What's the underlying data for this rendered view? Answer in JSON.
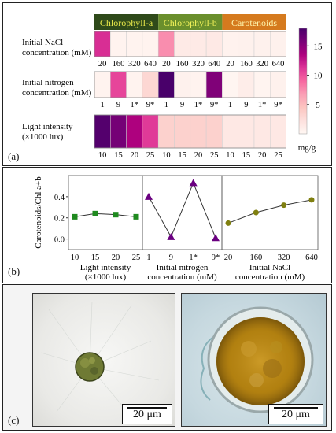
{
  "panel_labels": {
    "a": "(a)",
    "b": "(b)",
    "c": "(c)"
  },
  "heatmap": {
    "group_headers": [
      {
        "label": "Chlorophyll-a",
        "bg": "#2f4a1a",
        "fg": "#e8e84a"
      },
      {
        "label": "Chlorophyll-b",
        "bg": "#6a8f2c",
        "fg": "#f2f25a"
      },
      {
        "label": "Carotenoids",
        "bg": "#d57a1e",
        "fg": "#fff7b0"
      }
    ],
    "rows": [
      {
        "label": "Initial NaCl concentration (mM)",
        "label_line1": "Initial NaCl",
        "label_line2": "concentration (mM)",
        "ticks": [
          "20",
          "160",
          "320",
          "640",
          "20",
          "160",
          "320",
          "640",
          "20",
          "160",
          "320",
          "640"
        ],
        "values": [
          11.5,
          0.4,
          0.4,
          0.4,
          7.5,
          1.3,
          1.3,
          1.4,
          0.5,
          0.6,
          0.6,
          0.6
        ]
      },
      {
        "label": "Initial nitrogen concentration (mM)",
        "label_line1": "Initial nitrogen",
        "label_line2": "concentration (mM)",
        "ticks": [
          "1",
          "9",
          "1*",
          "9*",
          "1",
          "9",
          "1*",
          "9*",
          "1",
          "9",
          "1*",
          "9*"
        ],
        "values": [
          0.4,
          10.5,
          0.4,
          3.0,
          18.0,
          0.6,
          0.4,
          15.5,
          0.2,
          1.0,
          0.3,
          0.6
        ]
      },
      {
        "label": "Light intensity (×1000 lux)",
        "label_line1": "Light intensity",
        "label_line2": "(×1000  lux)",
        "ticks": [
          "10",
          "15",
          "20",
          "25",
          "10",
          "15",
          "20",
          "25",
          "10",
          "15",
          "20",
          "25"
        ],
        "values": [
          17.5,
          16.0,
          13.5,
          11.0,
          3.5,
          3.5,
          3.5,
          3.5,
          1.5,
          1.5,
          1.5,
          1.5
        ]
      }
    ],
    "colorbar": {
      "ticks": [
        "15",
        "10",
        "5"
      ],
      "tick_values": [
        15,
        10,
        5
      ],
      "min": 0,
      "max": 18,
      "unit": "mg/g",
      "stops": [
        "#fff7f3",
        "#fde0dd",
        "#fcc5c0",
        "#fa9fb5",
        "#f768a1",
        "#dd3497",
        "#ae017e",
        "#7a0177",
        "#49006a"
      ]
    }
  },
  "chart_data": [
    {
      "type": "line",
      "title": "",
      "xlabel": "Light intensity (×1000 lux)",
      "ylabel": "Carotenoids/Chl a+b",
      "categories": [
        "10",
        "15",
        "20",
        "25"
      ],
      "values": [
        0.21,
        0.24,
        0.23,
        0.21
      ],
      "ylim": [
        -0.1,
        0.6
      ],
      "yticks": [
        "0.0",
        "0.2",
        "0.4"
      ],
      "color": "#1f8a1f",
      "marker": "square"
    },
    {
      "type": "line",
      "title": "",
      "xlabel": "Initial nitrogen concentration (mM)",
      "ylabel": "",
      "categories": [
        "1",
        "9",
        "1*",
        "9*"
      ],
      "values": [
        0.4,
        0.02,
        0.53,
        0.01
      ],
      "ylim": [
        -0.1,
        0.6
      ],
      "color": "#6a0080",
      "marker": "triangle"
    },
    {
      "type": "line",
      "title": "",
      "xlabel": "Initial NaCl concentration (mM)",
      "ylabel": "",
      "categories": [
        "20",
        "160",
        "320",
        "640"
      ],
      "values": [
        0.15,
        0.25,
        0.32,
        0.37
      ],
      "ylim": [
        -0.1,
        0.6
      ],
      "color": "#7f7f10",
      "marker": "circle"
    }
  ],
  "xlabel_lines": [
    [
      "Light intensity",
      "(×1000 lux)"
    ],
    [
      "Initial nitrogen",
      "concentration (mM)"
    ],
    [
      "Initial NaCl",
      "concentration (mM)"
    ]
  ],
  "micrographs": [
    {
      "name": "small-cell",
      "scale_label": "20 μm"
    },
    {
      "name": "large-cell",
      "scale_label": "20 μm"
    }
  ]
}
